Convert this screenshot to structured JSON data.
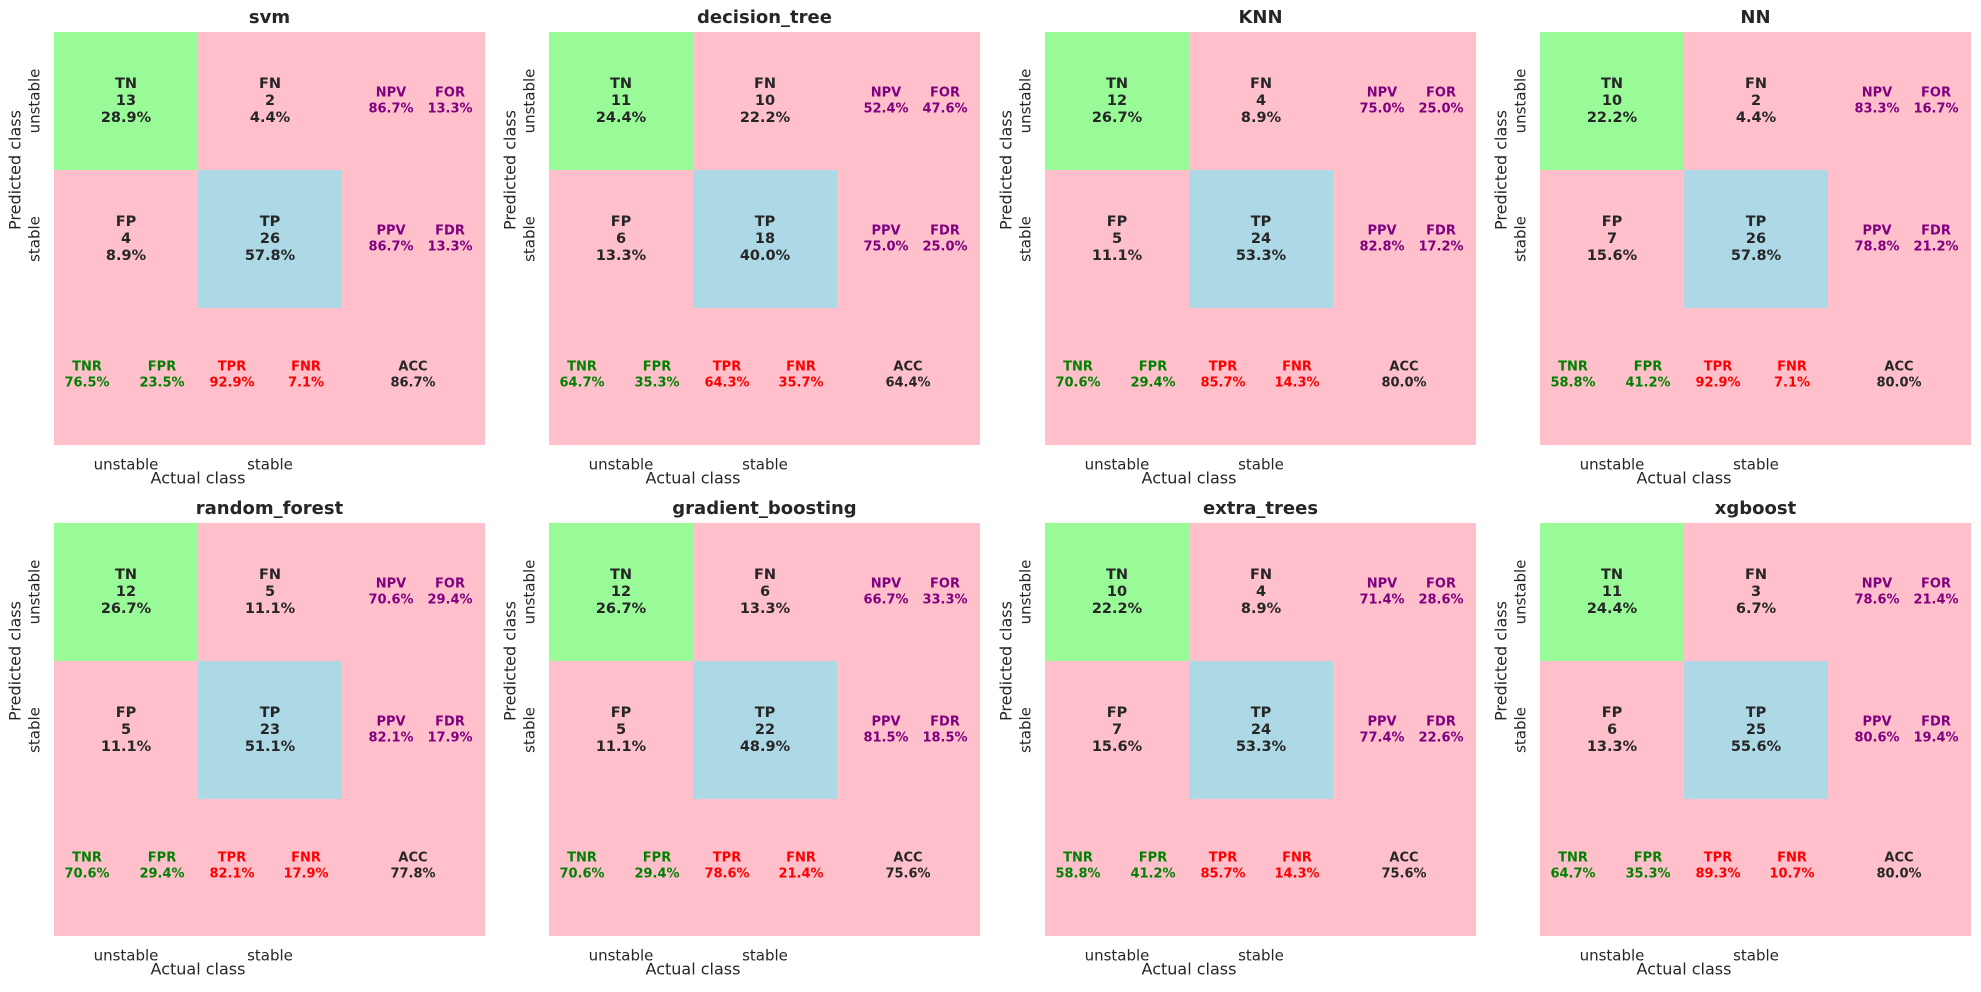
{
  "colors": {
    "tn_cell": "#98FB98",
    "tp_cell": "#ADD8E6",
    "other_cell": "#FFC0CB",
    "npv_ppv_text": "#800080",
    "spec_text": "#008000",
    "sens_text": "#FF0000",
    "acc_text": "#262626",
    "cell_text": "#262626"
  },
  "axes_labels": {
    "xlabel": "Actual class",
    "ylabel": "Predicted class",
    "x_ticks": [
      "unstable",
      "stable"
    ],
    "y_ticks": [
      "unstable",
      "stable"
    ]
  },
  "chart_data": [
    {
      "type": "table",
      "title": "svm",
      "cells": {
        "TN": {
          "count": 13,
          "pct": "28.9%"
        },
        "FN": {
          "count": 2,
          "pct": "4.4%"
        },
        "FP": {
          "count": 4,
          "pct": "8.9%"
        },
        "TP": {
          "count": 26,
          "pct": "57.8%"
        }
      },
      "metrics": {
        "NPV": "86.7%",
        "FOR": "13.3%",
        "PPV": "86.7%",
        "FDR": "13.3%",
        "TNR": "76.5%",
        "FPR": "23.5%",
        "TPR": "92.9%",
        "FNR": "7.1%",
        "ACC": "86.7%"
      }
    },
    {
      "type": "table",
      "title": "decision_tree",
      "cells": {
        "TN": {
          "count": 11,
          "pct": "24.4%"
        },
        "FN": {
          "count": 10,
          "pct": "22.2%"
        },
        "FP": {
          "count": 6,
          "pct": "13.3%"
        },
        "TP": {
          "count": 18,
          "pct": "40.0%"
        }
      },
      "metrics": {
        "NPV": "52.4%",
        "FOR": "47.6%",
        "PPV": "75.0%",
        "FDR": "25.0%",
        "TNR": "64.7%",
        "FPR": "35.3%",
        "TPR": "64.3%",
        "FNR": "35.7%",
        "ACC": "64.4%"
      }
    },
    {
      "type": "table",
      "title": "KNN",
      "cells": {
        "TN": {
          "count": 12,
          "pct": "26.7%"
        },
        "FN": {
          "count": 4,
          "pct": "8.9%"
        },
        "FP": {
          "count": 5,
          "pct": "11.1%"
        },
        "TP": {
          "count": 24,
          "pct": "53.3%"
        }
      },
      "metrics": {
        "NPV": "75.0%",
        "FOR": "25.0%",
        "PPV": "82.8%",
        "FDR": "17.2%",
        "TNR": "70.6%",
        "FPR": "29.4%",
        "TPR": "85.7%",
        "FNR": "14.3%",
        "ACC": "80.0%"
      }
    },
    {
      "type": "table",
      "title": "NN",
      "cells": {
        "TN": {
          "count": 10,
          "pct": "22.2%"
        },
        "FN": {
          "count": 2,
          "pct": "4.4%"
        },
        "FP": {
          "count": 7,
          "pct": "15.6%"
        },
        "TP": {
          "count": 26,
          "pct": "57.8%"
        }
      },
      "metrics": {
        "NPV": "83.3%",
        "FOR": "16.7%",
        "PPV": "78.8%",
        "FDR": "21.2%",
        "TNR": "58.8%",
        "FPR": "41.2%",
        "TPR": "92.9%",
        "FNR": "7.1%",
        "ACC": "80.0%"
      }
    },
    {
      "type": "table",
      "title": "random_forest",
      "cells": {
        "TN": {
          "count": 12,
          "pct": "26.7%"
        },
        "FN": {
          "count": 5,
          "pct": "11.1%"
        },
        "FP": {
          "count": 5,
          "pct": "11.1%"
        },
        "TP": {
          "count": 23,
          "pct": "51.1%"
        }
      },
      "metrics": {
        "NPV": "70.6%",
        "FOR": "29.4%",
        "PPV": "82.1%",
        "FDR": "17.9%",
        "TNR": "70.6%",
        "FPR": "29.4%",
        "TPR": "82.1%",
        "FNR": "17.9%",
        "ACC": "77.8%"
      }
    },
    {
      "type": "table",
      "title": "gradient_boosting",
      "cells": {
        "TN": {
          "count": 12,
          "pct": "26.7%"
        },
        "FN": {
          "count": 6,
          "pct": "13.3%"
        },
        "FP": {
          "count": 5,
          "pct": "11.1%"
        },
        "TP": {
          "count": 22,
          "pct": "48.9%"
        }
      },
      "metrics": {
        "NPV": "66.7%",
        "FOR": "33.3%",
        "PPV": "81.5%",
        "FDR": "18.5%",
        "TNR": "70.6%",
        "FPR": "29.4%",
        "TPR": "78.6%",
        "FNR": "21.4%",
        "ACC": "75.6%"
      }
    },
    {
      "type": "table",
      "title": "extra_trees",
      "cells": {
        "TN": {
          "count": 10,
          "pct": "22.2%"
        },
        "FN": {
          "count": 4,
          "pct": "8.9%"
        },
        "FP": {
          "count": 7,
          "pct": "15.6%"
        },
        "TP": {
          "count": 24,
          "pct": "53.3%"
        }
      },
      "metrics": {
        "NPV": "71.4%",
        "FOR": "28.6%",
        "PPV": "77.4%",
        "FDR": "22.6%",
        "TNR": "58.8%",
        "FPR": "41.2%",
        "TPR": "85.7%",
        "FNR": "14.3%",
        "ACC": "75.6%"
      }
    },
    {
      "type": "table",
      "title": "xgboost",
      "cells": {
        "TN": {
          "count": 11,
          "pct": "24.4%"
        },
        "FN": {
          "count": 3,
          "pct": "6.7%"
        },
        "FP": {
          "count": 6,
          "pct": "13.3%"
        },
        "TP": {
          "count": 25,
          "pct": "55.6%"
        }
      },
      "metrics": {
        "NPV": "78.6%",
        "FOR": "21.4%",
        "PPV": "80.6%",
        "FDR": "19.4%",
        "TNR": "64.7%",
        "FPR": "35.3%",
        "TPR": "89.3%",
        "FNR": "10.7%",
        "ACC": "80.0%"
      }
    }
  ]
}
